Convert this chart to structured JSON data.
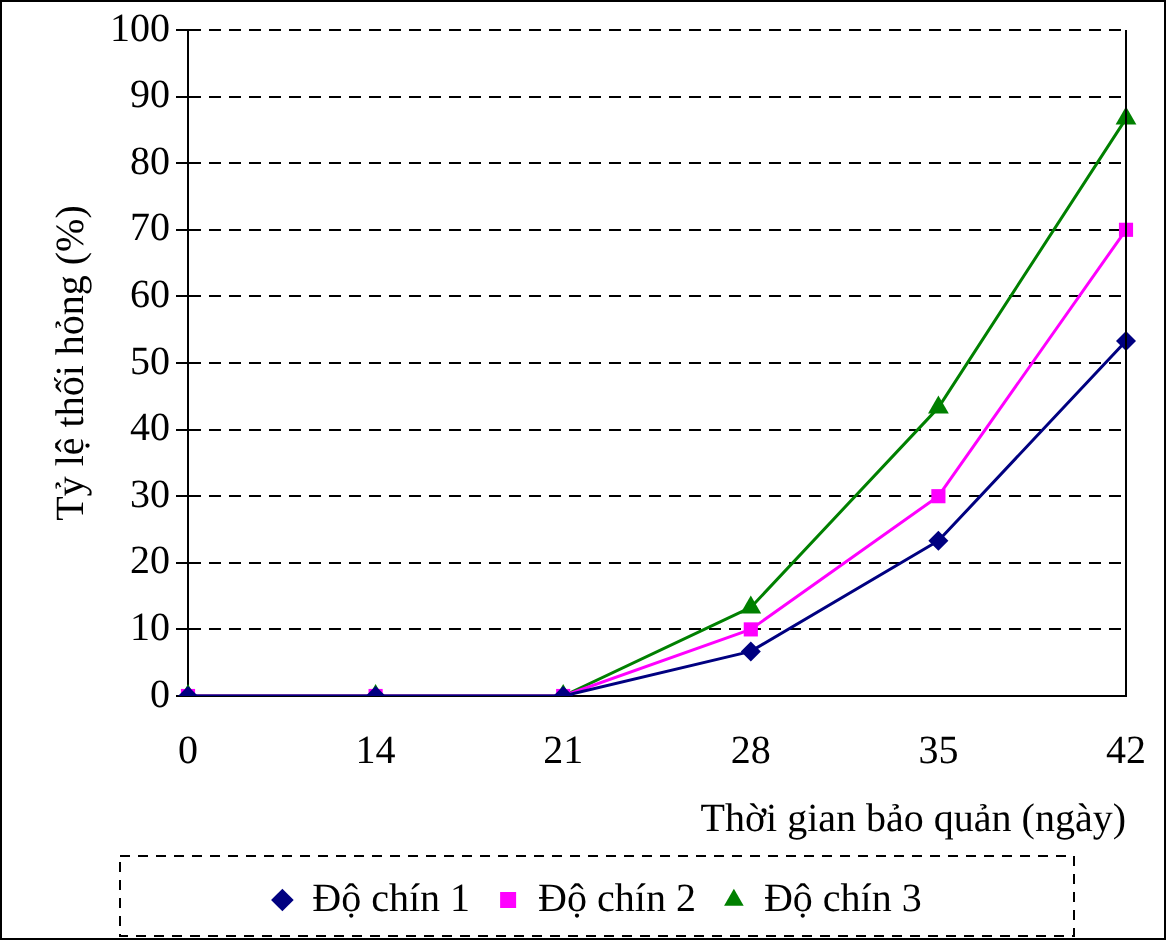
{
  "chart_data": {
    "type": "line",
    "xlabel": "Thời gian bảo quản (ngày)",
    "ylabel": "Tỷ lệ thối hỏng (%)",
    "categories": [
      "0",
      "14",
      "21",
      "28",
      "35",
      "42"
    ],
    "series": [
      {
        "name": "Độ chín 1",
        "color": "#000080",
        "marker": "diamond",
        "values": [
          0,
          0,
          0,
          6.7,
          23.3,
          53.3
        ]
      },
      {
        "name": "Độ chín 2",
        "color": "#ff00ff",
        "marker": "square",
        "values": [
          0,
          0,
          0,
          10,
          30,
          70
        ]
      },
      {
        "name": "Độ chín 3",
        "color": "#008000",
        "marker": "triangle",
        "values": [
          0,
          0,
          0,
          13.3,
          43.3,
          86.7
        ]
      }
    ],
    "ylim": [
      0,
      100
    ],
    "yticks": [
      0,
      10,
      20,
      30,
      40,
      50,
      60,
      70,
      80,
      90,
      100
    ],
    "grid": "y",
    "legend": "bottom",
    "line_style": "solid"
  }
}
